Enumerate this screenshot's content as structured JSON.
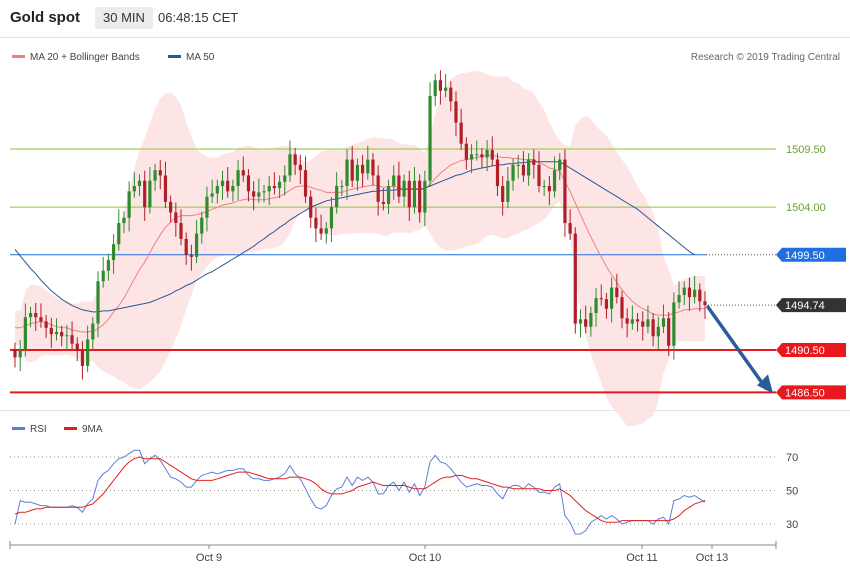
{
  "header": {
    "title": "Gold spot",
    "timeframe": "30 MIN",
    "time": "06:48:15 CET"
  },
  "legend": {
    "ma20": "MA 20 + Bollinger Bands",
    "ma50": "MA 50",
    "ma20_color": "#f08080",
    "ma50_color": "#2b5797",
    "credit": "Research © 2019 Trading Central"
  },
  "rsi_legend": {
    "rsi": "RSI",
    "ma9": "9MA",
    "rsi_color": "#5b7fd6",
    "ma9_color": "#e02020"
  },
  "colors": {
    "up": "#2e8b2e",
    "down": "#b01e2a",
    "band": "#fde0e0",
    "green_level": "#8cc63f",
    "red_level": "#e8191d",
    "blue_level": "#1e6fe0",
    "current": "#333333",
    "arrow": "#2d5b9a"
  },
  "chart_data": [
    {
      "type": "line",
      "chart": "price",
      "y_range": [
        1483.8,
        1521.8
      ],
      "x_labels": [
        "Oct 9",
        "Oct 10",
        "Oct 11",
        "Oct 13"
      ],
      "levels": [
        {
          "value": 1509.5,
          "label": "1509.50",
          "kind": "resistance"
        },
        {
          "value": 1504.0,
          "label": "1504.00",
          "kind": "resistance"
        },
        {
          "value": 1499.5,
          "label": "1499.50",
          "kind": "pivot"
        },
        {
          "value": 1490.5,
          "label": "1490.50",
          "kind": "support"
        },
        {
          "value": 1486.5,
          "label": "1486.50",
          "kind": "support"
        }
      ],
      "current_price": {
        "value": 1494.74,
        "label": "1494.74"
      },
      "candles_close": [
        1489.8,
        1490.5,
        1493.6,
        1494.0,
        1493.6,
        1493.2,
        1492.6,
        1492.0,
        1492.2,
        1491.8,
        1491.9,
        1491.1,
        1490.4,
        1489.0,
        1491.5,
        1493.0,
        1497.0,
        1498.0,
        1499.0,
        1500.5,
        1502.5,
        1503.0,
        1505.5,
        1506.0,
        1506.5,
        1504.0,
        1506.5,
        1507.5,
        1507.0,
        1504.5,
        1503.5,
        1502.5,
        1501.0,
        1499.5,
        1499.3,
        1501.5,
        1503.0,
        1505.0,
        1505.3,
        1506.0,
        1506.5,
        1505.5,
        1506.0,
        1507.5,
        1507.0,
        1505.5,
        1505.0,
        1505.4,
        1505.5,
        1506.0,
        1505.8,
        1506.4,
        1507.0,
        1509.0,
        1508.0,
        1507.5,
        1505.0,
        1503.0,
        1502.0,
        1501.5,
        1502.0,
        1504.0,
        1506.0,
        1506.0,
        1508.5,
        1506.5,
        1508.0,
        1507.2,
        1508.5,
        1507.0,
        1504.5,
        1504.3,
        1506.0,
        1507.0,
        1505.0,
        1506.5,
        1504.0,
        1506.5,
        1503.5,
        1506.5,
        1514.5,
        1516.0,
        1515.0,
        1515.3,
        1514.0,
        1512.0,
        1510.0,
        1508.5,
        1509.0,
        1509.0,
        1508.7,
        1509.4,
        1508.5,
        1506.0,
        1504.5,
        1506.5,
        1508.0,
        1508.0,
        1507.0,
        1508.5,
        1508.0,
        1506.0,
        1506.0,
        1505.5,
        1507.5,
        1508.5,
        1502.5,
        1501.5,
        1493.0,
        1493.4,
        1492.7,
        1494.0,
        1495.4,
        1495.3,
        1494.4,
        1496.4,
        1495.5,
        1493.5,
        1493.0,
        1493.4,
        1493.2,
        1492.7,
        1493.4,
        1491.8,
        1492.7,
        1493.5,
        1490.9,
        1495.0,
        1495.7,
        1496.4,
        1495.5,
        1496.2,
        1495.1,
        1494.74
      ],
      "ma20": [
        1492.6,
        1492.6,
        1492.8,
        1493.0,
        1493.1,
        1493.2,
        1493.1,
        1492.9,
        1492.7,
        1492.6,
        1492.6,
        1492.4,
        1492.3,
        1492.2,
        1492.2,
        1492.3,
        1492.5,
        1492.9,
        1493.4,
        1494.1,
        1494.7,
        1495.4,
        1496.3,
        1497.2,
        1498.1,
        1498.8,
        1499.7,
        1500.6,
        1501.4,
        1502.1,
        1502.6,
        1503.0,
        1503.2,
        1503.2,
        1503.2,
        1503.3,
        1503.4,
        1503.6,
        1503.8,
        1504.0,
        1504.2,
        1504.3,
        1504.4,
        1504.6,
        1504.7,
        1504.8,
        1504.7,
        1504.7,
        1504.7,
        1504.8,
        1504.9,
        1505.0,
        1505.3,
        1505.6,
        1505.9,
        1506.0,
        1506.0,
        1505.9,
        1505.7,
        1505.6,
        1505.4,
        1505.4,
        1505.4,
        1505.4,
        1505.6,
        1505.7,
        1505.8,
        1505.9,
        1506.0,
        1506.1,
        1506.0,
        1505.9,
        1505.9,
        1506.0,
        1505.8,
        1505.8,
        1505.7,
        1505.8,
        1505.7,
        1505.7,
        1506.2,
        1506.7,
        1507.2,
        1507.6,
        1508.0,
        1508.2,
        1508.4,
        1508.5,
        1508.6,
        1508.7,
        1508.8,
        1508.9,
        1508.9,
        1508.8,
        1508.7,
        1508.7,
        1508.6,
        1508.6,
        1508.5,
        1508.5,
        1508.5,
        1508.2,
        1508.0,
        1507.7,
        1507.6,
        1507.4,
        1506.4,
        1505.5,
        1504.4,
        1503.3,
        1502.2,
        1501.2,
        1500.2,
        1499.3,
        1498.4,
        1497.6,
        1496.9,
        1496.2,
        1495.6,
        1495.1,
        1494.7,
        1494.4,
        1494.2,
        1493.9,
        1493.8,
        1493.8,
        1493.8,
        1494.0,
        1494.1,
        1494.3,
        1494.3,
        1494.4,
        1494.4,
        1494.4
      ],
      "ma50": [
        1500.0,
        1499.4,
        1498.8,
        1498.2,
        1497.7,
        1497.1,
        1496.6,
        1496.1,
        1495.7,
        1495.3,
        1495.0,
        1494.7,
        1494.5,
        1494.3,
        1494.2,
        1494.1,
        1494.1,
        1494.2,
        1494.2,
        1494.3,
        1494.4,
        1494.5,
        1494.6,
        1494.7,
        1494.8,
        1494.9,
        1495.0,
        1495.2,
        1495.4,
        1495.6,
        1495.8,
        1496.1,
        1496.3,
        1496.6,
        1496.8,
        1497.1,
        1497.4,
        1497.7,
        1497.9,
        1498.2,
        1498.5,
        1498.8,
        1499.1,
        1499.4,
        1499.7,
        1500.0,
        1500.3,
        1500.7,
        1501.0,
        1501.4,
        1501.7,
        1502.1,
        1502.4,
        1502.8,
        1503.1,
        1503.4,
        1503.7,
        1504.0,
        1504.2,
        1504.4,
        1504.6,
        1504.7,
        1504.8,
        1504.9,
        1505.0,
        1505.1,
        1505.2,
        1505.3,
        1505.4,
        1505.5,
        1505.5,
        1505.6,
        1505.6,
        1505.6,
        1505.7,
        1505.7,
        1505.7,
        1505.7,
        1505.7,
        1505.8,
        1506.0,
        1506.2,
        1506.4,
        1506.6,
        1506.8,
        1507.0,
        1507.1,
        1507.3,
        1507.5,
        1507.6,
        1507.7,
        1507.8,
        1507.9,
        1508.0,
        1508.0,
        1508.1,
        1508.1,
        1508.2,
        1508.2,
        1508.3,
        1508.3,
        1508.3,
        1508.3,
        1508.3,
        1508.3,
        1508.3,
        1508.0,
        1507.7,
        1507.4,
        1507.1,
        1506.8,
        1506.5,
        1506.2,
        1505.9,
        1505.6,
        1505.3,
        1505.0,
        1504.7,
        1504.4,
        1504.1,
        1503.8,
        1503.4,
        1503.0,
        1502.6,
        1502.2,
        1501.8,
        1501.4,
        1501.0,
        1500.6,
        1500.2,
        1499.8,
        1499.5
      ]
    },
    {
      "type": "line",
      "chart": "rsi",
      "y_ticks": [
        30,
        50,
        70
      ],
      "rsi": [
        30,
        44,
        43,
        43,
        42,
        41,
        41,
        40,
        40,
        40,
        40,
        41,
        40,
        37,
        42,
        45,
        56,
        60,
        62,
        66,
        69,
        70,
        72,
        74,
        74,
        66,
        69,
        71,
        68,
        63,
        58,
        57,
        55,
        52,
        52,
        56,
        59,
        60,
        61,
        60,
        61,
        62,
        62,
        63,
        63,
        59,
        57,
        57,
        56,
        56,
        57,
        58,
        60,
        65,
        60,
        57,
        51,
        45,
        40,
        39,
        41,
        47,
        51,
        52,
        58,
        53,
        58,
        56,
        58,
        55,
        48,
        48,
        53,
        55,
        50,
        55,
        49,
        54,
        47,
        52,
        67,
        71,
        67,
        66,
        63,
        59,
        55,
        52,
        53,
        54,
        53,
        53,
        52,
        48,
        45,
        51,
        53,
        53,
        51,
        54,
        52,
        49,
        49,
        48,
        52,
        54,
        35,
        31,
        24,
        24,
        26,
        31,
        33,
        35,
        33,
        35,
        33,
        30,
        31,
        32,
        32,
        32,
        32,
        30,
        33,
        34,
        30,
        44,
        45,
        47,
        46,
        47,
        45,
        43
      ],
      "ma9": [
        36,
        37,
        37,
        38,
        39,
        39,
        40,
        40,
        40,
        40,
        40,
        40,
        40,
        40,
        41,
        42,
        45,
        48,
        52,
        56,
        60,
        64,
        67,
        69,
        70,
        69,
        69,
        69,
        69,
        67,
        65,
        63,
        61,
        59,
        57,
        56,
        56,
        56,
        56,
        57,
        58,
        59,
        60,
        61,
        61,
        61,
        60,
        59,
        58,
        57,
        57,
        57,
        57,
        58,
        58,
        58,
        57,
        56,
        54,
        51,
        49,
        48,
        48,
        48,
        49,
        50,
        52,
        53,
        54,
        55,
        54,
        53,
        53,
        53,
        53,
        53,
        52,
        51,
        51,
        51,
        53,
        55,
        57,
        58,
        58,
        59,
        59,
        58,
        57,
        57,
        56,
        55,
        54,
        53,
        52,
        52,
        51,
        51,
        51,
        51,
        51,
        51,
        50,
        50,
        50,
        51,
        49,
        47,
        44,
        41,
        38,
        36,
        34,
        32,
        31,
        31,
        31,
        32,
        32,
        32,
        32,
        32,
        32,
        32,
        32,
        32,
        32,
        33,
        35,
        38,
        40,
        42,
        43,
        44
      ]
    }
  ]
}
